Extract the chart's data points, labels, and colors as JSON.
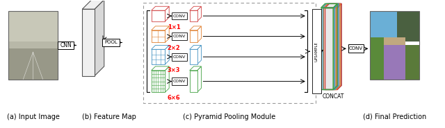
{
  "bg_color": "#ffffff",
  "pool_colors": [
    "#d04040",
    "#e08030",
    "#4090c0",
    "#40a040"
  ],
  "pool_labels": [
    "1×1",
    "2×2",
    "3×3",
    "6×6"
  ],
  "pool_rc": [
    1,
    2,
    3,
    6
  ],
  "concat_colors": [
    "#d04040",
    "#e08030",
    "#4090c0",
    "#40a040",
    "#888888",
    "#dddddd"
  ],
  "captions": [
    "(a) Input Image",
    "(b) Feature Map",
    "(c) Pyramid Pooling Module",
    "(d) Final Prediction"
  ],
  "caption_fontsize": 7
}
